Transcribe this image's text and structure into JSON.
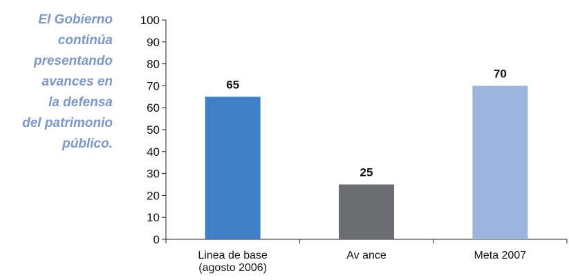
{
  "caption": {
    "lines": [
      "El Gobierno",
      "continúa",
      "presentando",
      "avances en",
      "la defensa",
      "del patrimonio",
      "público."
    ],
    "color": "#7b97cf"
  },
  "chart_data": {
    "type": "bar",
    "categories": [
      [
        "Linea de base",
        "(agosto 2006)"
      ],
      [
        "Av ance"
      ],
      [
        "Meta 2007"
      ]
    ],
    "values": [
      65,
      25,
      70
    ],
    "data_labels": [
      "65",
      "25",
      "70"
    ],
    "colors": [
      "#3f7fc6",
      "#6b6d70",
      "#9db6df"
    ],
    "ylim": [
      0,
      100
    ],
    "yticks": [
      0,
      10,
      20,
      30,
      40,
      50,
      60,
      70,
      80,
      90,
      100
    ],
    "title": "",
    "xlabel": "",
    "ylabel": "",
    "grid": false,
    "legend": "none"
  }
}
